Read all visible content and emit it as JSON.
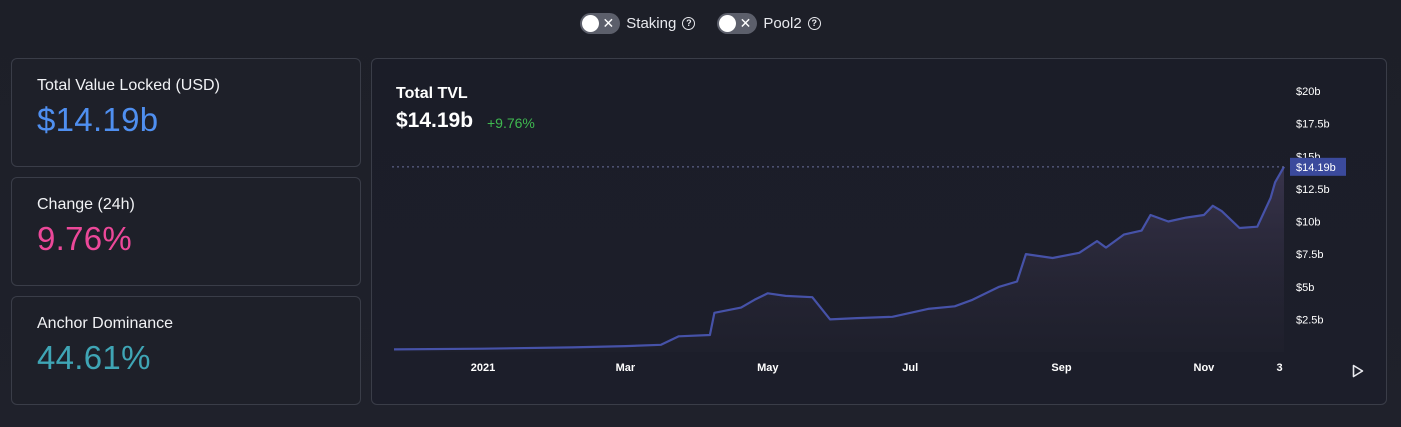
{
  "toggles": [
    {
      "label": "Staking",
      "icon": "x-icon",
      "help": "?"
    },
    {
      "label": "Pool2",
      "icon": "x-icon",
      "help": "?"
    }
  ],
  "cards": [
    {
      "label": "Total Value Locked (USD)",
      "value": "$14.19b",
      "color": "#4f8ff0"
    },
    {
      "label": "Change (24h)",
      "value": "9.76%",
      "color": "#ec4899"
    },
    {
      "label": "Anchor Dominance",
      "value": "44.61%",
      "color": "#3fa5b5"
    }
  ],
  "chart": {
    "title": "Total TVL",
    "value": "$14.19b",
    "change": "+9.76%",
    "current_label": "$14.19b",
    "colors": {
      "line": "#4652a8",
      "fill_top": "#35324a",
      "grid": "#6a6f9a",
      "marker_bg": "#3b4a9c",
      "change": "#3fb950"
    }
  },
  "chart_data": {
    "type": "area",
    "title": "Total TVL",
    "ylim": [
      0,
      20
    ],
    "yticks": [
      {
        "value": 2.5,
        "label": "$2.5b"
      },
      {
        "value": 5,
        "label": "$5b"
      },
      {
        "value": 7.5,
        "label": "$7.5b"
      },
      {
        "value": 10,
        "label": "$10b"
      },
      {
        "value": 12.5,
        "label": "$12.5b"
      },
      {
        "value": 15,
        "label": "$15b"
      },
      {
        "value": 17.5,
        "label": "$17.5b"
      },
      {
        "value": 20,
        "label": "$20b"
      }
    ],
    "xticks": [
      {
        "t": 0.1,
        "label": "2021"
      },
      {
        "t": 0.26,
        "label": "Mar"
      },
      {
        "t": 0.42,
        "label": "May"
      },
      {
        "t": 0.58,
        "label": "Jul"
      },
      {
        "t": 0.75,
        "label": "Sep"
      },
      {
        "t": 0.91,
        "label": "Nov"
      },
      {
        "t": 0.995,
        "label": "3"
      }
    ],
    "x_range": [
      0,
      1
    ],
    "points": [
      [
        0.0,
        0.2
      ],
      [
        0.1,
        0.25
      ],
      [
        0.2,
        0.35
      ],
      [
        0.26,
        0.45
      ],
      [
        0.3,
        0.55
      ],
      [
        0.32,
        1.2
      ],
      [
        0.355,
        1.3
      ],
      [
        0.36,
        3.0
      ],
      [
        0.39,
        3.4
      ],
      [
        0.405,
        4.0
      ],
      [
        0.42,
        4.5
      ],
      [
        0.44,
        4.3
      ],
      [
        0.47,
        4.2
      ],
      [
        0.49,
        2.5
      ],
      [
        0.52,
        2.6
      ],
      [
        0.56,
        2.7
      ],
      [
        0.6,
        3.3
      ],
      [
        0.63,
        3.5
      ],
      [
        0.65,
        4.0
      ],
      [
        0.68,
        5.0
      ],
      [
        0.7,
        5.4
      ],
      [
        0.71,
        7.5
      ],
      [
        0.74,
        7.2
      ],
      [
        0.77,
        7.6
      ],
      [
        0.79,
        8.5
      ],
      [
        0.8,
        8.0
      ],
      [
        0.82,
        9.0
      ],
      [
        0.84,
        9.3
      ],
      [
        0.85,
        10.5
      ],
      [
        0.87,
        10.0
      ],
      [
        0.89,
        10.3
      ],
      [
        0.91,
        10.5
      ],
      [
        0.92,
        11.2
      ],
      [
        0.93,
        10.8
      ],
      [
        0.95,
        9.5
      ],
      [
        0.97,
        9.6
      ],
      [
        0.985,
        11.8
      ],
      [
        0.99,
        13.0
      ],
      [
        1.0,
        14.19
      ]
    ],
    "current": 14.19
  }
}
